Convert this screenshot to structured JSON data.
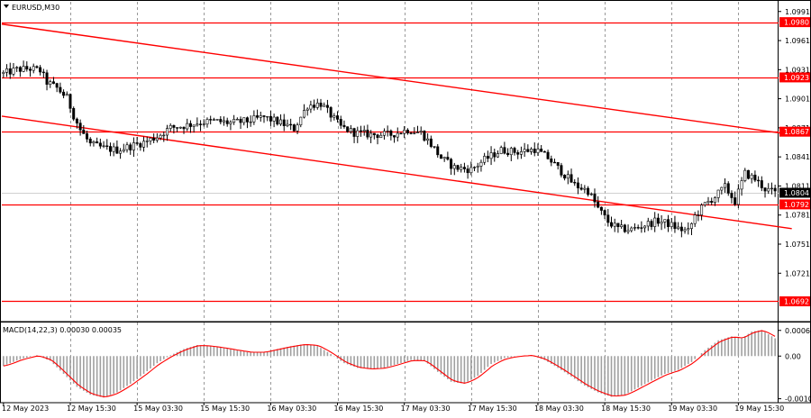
{
  "chart_data": [
    {
      "type": "candlestick",
      "title": "EURUSD,M30",
      "price_ticks": [
        "1.0991",
        "1.0961",
        "1.0931",
        "1.0901",
        "1.0871",
        "1.0841",
        "1.0811",
        "1.0781",
        "1.0751",
        "1.0721"
      ],
      "ylim": [
        1.0672,
        1.1001
      ],
      "horizontal_levels": [
        {
          "label": "1.0980",
          "value": 1.098
        },
        {
          "label": "1.0923",
          "value": 1.0923
        },
        {
          "label": "1.0867",
          "value": 1.0867
        },
        {
          "label": "1.0792",
          "value": 1.0792
        },
        {
          "label": "1.0692",
          "value": 1.0692
        }
      ],
      "current_price": {
        "label": "1.0804",
        "value": 1.0804
      },
      "trend_lines": [
        {
          "from": {
            "bar": 0,
            "price": 1.0978
          },
          "to": {
            "bar": 236,
            "price": 1.0864
          }
        },
        {
          "from": {
            "bar": 0,
            "price": 1.0883
          },
          "to": {
            "bar": 236,
            "price": 1.0767
          }
        }
      ],
      "close_path": [
        {
          "bar": 0,
          "price": 1.0927
        },
        {
          "bar": 4,
          "price": 1.0931
        },
        {
          "bar": 8,
          "price": 1.0932
        },
        {
          "bar": 11,
          "price": 1.093
        },
        {
          "bar": 13,
          "price": 1.0918
        },
        {
          "bar": 16,
          "price": 1.0912
        },
        {
          "bar": 19,
          "price": 1.0902
        },
        {
          "bar": 21,
          "price": 1.0884
        },
        {
          "bar": 23,
          "price": 1.0869
        },
        {
          "bar": 26,
          "price": 1.0854
        },
        {
          "bar": 30,
          "price": 1.085
        },
        {
          "bar": 34,
          "price": 1.0848
        },
        {
          "bar": 38,
          "price": 1.0852
        },
        {
          "bar": 42,
          "price": 1.0856
        },
        {
          "bar": 46,
          "price": 1.0862
        },
        {
          "bar": 50,
          "price": 1.0871
        },
        {
          "bar": 54,
          "price": 1.0873
        },
        {
          "bar": 58,
          "price": 1.0876
        },
        {
          "bar": 63,
          "price": 1.0878
        },
        {
          "bar": 68,
          "price": 1.0876
        },
        {
          "bar": 73,
          "price": 1.0878
        },
        {
          "bar": 78,
          "price": 1.0882
        },
        {
          "bar": 83,
          "price": 1.0876
        },
        {
          "bar": 87,
          "price": 1.087
        },
        {
          "bar": 91,
          "price": 1.0894
        },
        {
          "bar": 95,
          "price": 1.0896
        },
        {
          "bar": 98,
          "price": 1.0884
        },
        {
          "bar": 101,
          "price": 1.0872
        },
        {
          "bar": 105,
          "price": 1.0866
        },
        {
          "bar": 110,
          "price": 1.0864
        },
        {
          "bar": 116,
          "price": 1.0864
        },
        {
          "bar": 121,
          "price": 1.0869
        },
        {
          "bar": 125,
          "price": 1.0866
        },
        {
          "bar": 128,
          "price": 1.0854
        },
        {
          "bar": 131,
          "price": 1.084
        },
        {
          "bar": 135,
          "price": 1.083
        },
        {
          "bar": 140,
          "price": 1.0828
        },
        {
          "bar": 144,
          "price": 1.0838
        },
        {
          "bar": 149,
          "price": 1.0848
        },
        {
          "bar": 154,
          "price": 1.0846
        },
        {
          "bar": 159,
          "price": 1.0849
        },
        {
          "bar": 163,
          "price": 1.084
        },
        {
          "bar": 167,
          "price": 1.0826
        },
        {
          "bar": 171,
          "price": 1.0812
        },
        {
          "bar": 175,
          "price": 1.0806
        },
        {
          "bar": 178,
          "price": 1.0788
        },
        {
          "bar": 181,
          "price": 1.0774
        },
        {
          "bar": 184,
          "price": 1.0767
        },
        {
          "bar": 188,
          "price": 1.0766
        },
        {
          "bar": 192,
          "price": 1.0771
        },
        {
          "bar": 196,
          "price": 1.0775
        },
        {
          "bar": 199,
          "price": 1.0772
        },
        {
          "bar": 202,
          "price": 1.0767
        },
        {
          "bar": 205,
          "price": 1.0764
        },
        {
          "bar": 207,
          "price": 1.078
        },
        {
          "bar": 210,
          "price": 1.0792
        },
        {
          "bar": 213,
          "price": 1.08
        },
        {
          "bar": 216,
          "price": 1.081
        },
        {
          "bar": 219,
          "price": 1.0795
        },
        {
          "bar": 222,
          "price": 1.0824
        },
        {
          "bar": 225,
          "price": 1.0818
        },
        {
          "bar": 228,
          "price": 1.0808
        },
        {
          "bar": 231,
          "price": 1.0804
        }
      ],
      "time_labels": [
        {
          "bar": 0,
          "label": "12 May 2023"
        },
        {
          "bar": 20,
          "label": "12 May 15:30"
        },
        {
          "bar": 40,
          "label": "15 May 03:30"
        },
        {
          "bar": 60,
          "label": "15 May 15:30"
        },
        {
          "bar": 80,
          "label": "16 May 03:30"
        },
        {
          "bar": 100,
          "label": "16 May 15:30"
        },
        {
          "bar": 120,
          "label": "17 May 03:30"
        },
        {
          "bar": 140,
          "label": "17 May 15:30"
        },
        {
          "bar": 160,
          "label": "18 May 03:30"
        },
        {
          "bar": 180,
          "label": "18 May 15:30"
        },
        {
          "bar": 200,
          "label": "19 May 03:30"
        },
        {
          "bar": 220,
          "label": "19 May 15:30"
        }
      ],
      "bar_count": 232
    },
    {
      "type": "histogram",
      "title": "MACD(14,22,3) 0.00030 0.00035",
      "y_ticks": [
        {
          "label": "0.00065",
          "value": 0.00065
        },
        {
          "label": "0.00",
          "value": 0
        },
        {
          "label": "-0.00108",
          "value": -0.00108
        }
      ],
      "ylim": [
        -0.00118,
        0.00085
      ],
      "histogram_path": [
        {
          "bar": 0,
          "value": -0.00025
        },
        {
          "bar": 5,
          "value": -8e-05
        },
        {
          "bar": 10,
          "value": 2e-05
        },
        {
          "bar": 14,
          "value": -0.00012
        },
        {
          "bar": 18,
          "value": -0.00045
        },
        {
          "bar": 22,
          "value": -0.00078
        },
        {
          "bar": 26,
          "value": -0.00098
        },
        {
          "bar": 30,
          "value": -0.00105
        },
        {
          "bar": 34,
          "value": -0.00092
        },
        {
          "bar": 38,
          "value": -0.0007
        },
        {
          "bar": 42,
          "value": -0.00045
        },
        {
          "bar": 46,
          "value": -0.00018
        },
        {
          "bar": 50,
          "value": 2e-05
        },
        {
          "bar": 54,
          "value": 0.00018
        },
        {
          "bar": 58,
          "value": 0.00028
        },
        {
          "bar": 62,
          "value": 0.00025
        },
        {
          "bar": 66,
          "value": 0.0002
        },
        {
          "bar": 70,
          "value": 0.00014
        },
        {
          "bar": 74,
          "value": 9e-05
        },
        {
          "bar": 78,
          "value": 0.0001
        },
        {
          "bar": 82,
          "value": 0.00018
        },
        {
          "bar": 86,
          "value": 0.00025
        },
        {
          "bar": 90,
          "value": 0.0003
        },
        {
          "bar": 94,
          "value": 0.00026
        },
        {
          "bar": 98,
          "value": 5e-05
        },
        {
          "bar": 102,
          "value": -0.00018
        },
        {
          "bar": 106,
          "value": -0.0003
        },
        {
          "bar": 110,
          "value": -0.00033
        },
        {
          "bar": 114,
          "value": -0.0003
        },
        {
          "bar": 118,
          "value": -0.0002
        },
        {
          "bar": 122,
          "value": -0.0001
        },
        {
          "bar": 126,
          "value": -0.00012
        },
        {
          "bar": 130,
          "value": -0.0004
        },
        {
          "bar": 134,
          "value": -0.00065
        },
        {
          "bar": 138,
          "value": -0.0007
        },
        {
          "bar": 142,
          "value": -0.0005
        },
        {
          "bar": 146,
          "value": -0.0002
        },
        {
          "bar": 150,
          "value": -5e-05
        },
        {
          "bar": 154,
          "value": 0.0
        },
        {
          "bar": 158,
          "value": 2e-05
        },
        {
          "bar": 162,
          "value": -0.0001
        },
        {
          "bar": 166,
          "value": -0.0003
        },
        {
          "bar": 170,
          "value": -0.00052
        },
        {
          "bar": 174,
          "value": -0.00075
        },
        {
          "bar": 178,
          "value": -0.00092
        },
        {
          "bar": 182,
          "value": -0.00103
        },
        {
          "bar": 186,
          "value": -0.00098
        },
        {
          "bar": 190,
          "value": -0.0008
        },
        {
          "bar": 194,
          "value": -0.00062
        },
        {
          "bar": 198,
          "value": -0.00045
        },
        {
          "bar": 202,
          "value": -0.00035
        },
        {
          "bar": 206,
          "value": -0.00015
        },
        {
          "bar": 210,
          "value": 0.00015
        },
        {
          "bar": 214,
          "value": 0.0004
        },
        {
          "bar": 218,
          "value": 0.0005
        },
        {
          "bar": 221,
          "value": 0.00045
        },
        {
          "bar": 224,
          "value": 0.00062
        },
        {
          "bar": 227,
          "value": 0.00066
        },
        {
          "bar": 231,
          "value": 0.00045
        }
      ]
    }
  ],
  "colors": {
    "level_line": "#ff0000",
    "level_tag_bg": "#ff0000",
    "level_tag_text": "#ffffff",
    "current_tag_bg": "#000000",
    "current_tag_text": "#ffffff",
    "candles": "#000000",
    "histogram": "#a0a0a0",
    "signal_line": "#ff0000",
    "grid": "#808080"
  }
}
